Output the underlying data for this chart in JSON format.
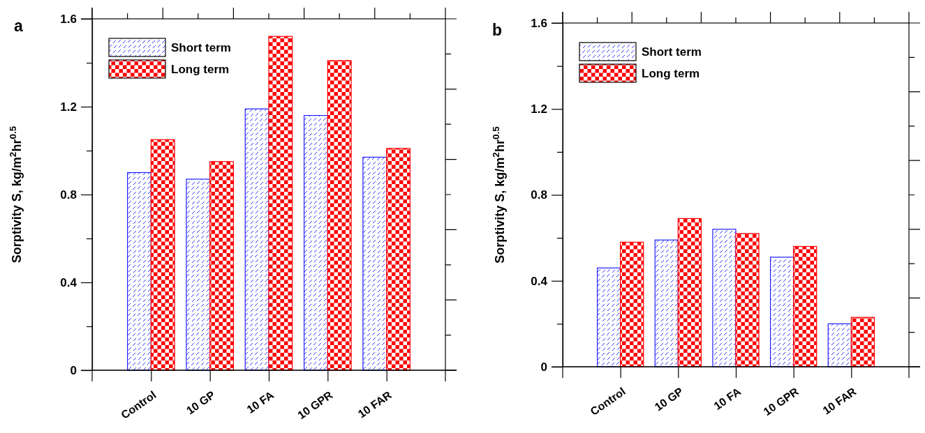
{
  "chart_data": [
    {
      "type": "bar",
      "title": "a",
      "ylabel": "Sorptivity S,  kg/m$^{2}$hr$^{0.5}$",
      "categories": [
        "Control",
        "10 GP",
        "10 FA",
        "10 GPR",
        "10 FAR"
      ],
      "series": [
        {
          "name": "Short term",
          "color": "#1f1fff",
          "values": [
            0.9,
            0.87,
            1.19,
            1.16,
            0.97
          ]
        },
        {
          "name": "Long term",
          "color": "#ff0000",
          "values": [
            1.05,
            0.95,
            1.52,
            1.41,
            1.01
          ]
        }
      ],
      "ylim": [
        0,
        1.6
      ],
      "yticks": [
        0,
        {
          "value": 0.2,
          "label": null
        },
        0.4,
        {
          "value": 0.6,
          "label": null
        },
        0.8,
        {
          "value": 1.0,
          "label": null
        },
        1.2,
        {
          "value": 1.4,
          "label": null
        },
        1.6
      ],
      "grid": false,
      "legend": "top left"
    },
    {
      "type": "bar",
      "title": "b",
      "ylabel": "Sorptivity S,  kg/m$^{2}$hr$^{0.5}$",
      "categories": [
        "Control",
        "10 GP",
        "10 FA",
        "10 GPR",
        "10 FAR"
      ],
      "series": [
        {
          "name": "Short term",
          "color": "#1f1fff",
          "values": [
            0.46,
            0.59,
            0.64,
            0.51,
            0.2
          ]
        },
        {
          "name": "Long term",
          "color": "#ff0000",
          "values": [
            0.58,
            0.69,
            0.62,
            0.56,
            0.23
          ]
        }
      ],
      "ylim": [
        0,
        1.6
      ],
      "yticks": [
        0,
        {
          "value": 0.2,
          "label": null
        },
        0.4,
        {
          "value": 0.6,
          "label": null
        },
        0.8,
        {
          "value": 1.0,
          "label": null
        },
        1.2,
        {
          "value": 1.4,
          "label": null
        },
        1.6
      ],
      "grid": false,
      "legend": "top left"
    }
  ]
}
